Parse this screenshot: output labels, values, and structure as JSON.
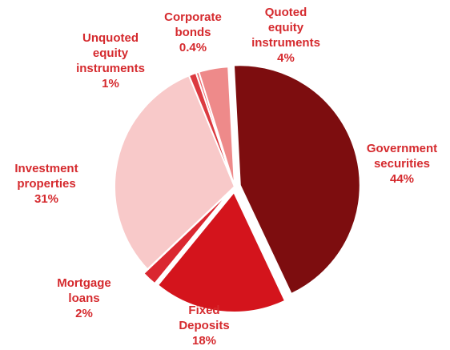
{
  "chart_data": {
    "type": "pie",
    "title": "",
    "unit": "%",
    "colors": {
      "text": "#d52a2e",
      "separator": "#ffffff"
    },
    "slices": [
      {
        "label_lines": [
          "Government",
          "securities"
        ],
        "value": 44,
        "value_label": "44%",
        "color": "#7d0d0f",
        "explode": true
      },
      {
        "label_lines": [
          "Fixed",
          "Deposits"
        ],
        "value": 18,
        "value_label": "18%",
        "color": "#d4141c",
        "explode": true
      },
      {
        "label_lines": [
          "Mortgage",
          "loans"
        ],
        "value": 2,
        "value_label": "2%",
        "color": "#da2730",
        "explode": true
      },
      {
        "label_lines": [
          "Investment",
          "properties"
        ],
        "value": 31,
        "value_label": "31%",
        "color": "#f8c9c9",
        "explode": false
      },
      {
        "label_lines": [
          "Unquoted",
          "equity",
          "instruments"
        ],
        "value": 1,
        "value_label": "1%",
        "color": "#dc3a40",
        "explode": false
      },
      {
        "label_lines": [
          "Corporate",
          "bonds"
        ],
        "value": 0.4,
        "value_label": "0.4%",
        "color": "#ee6a6e",
        "explode": false
      },
      {
        "label_lines": [
          "Quoted",
          "equity",
          "instruments"
        ],
        "value": 4,
        "value_label": "4%",
        "color": "#ee8a8a",
        "explode": false
      }
    ]
  }
}
